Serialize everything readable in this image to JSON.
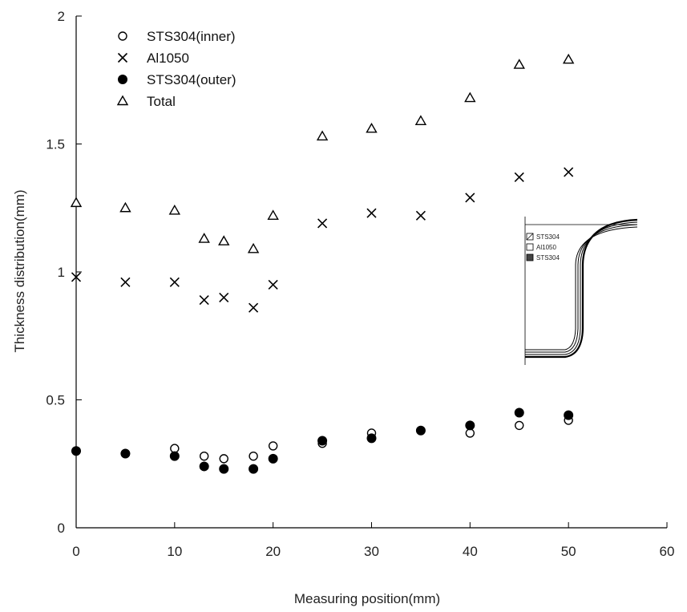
{
  "chart_data": {
    "type": "scatter",
    "title": "",
    "xlabel": "Measuring position(mm)",
    "ylabel": "Thickness distribution(mm)",
    "xlim": [
      0,
      60
    ],
    "ylim": [
      0,
      2
    ],
    "xticks": [
      "0",
      "10",
      "20",
      "30",
      "40",
      "50",
      "60"
    ],
    "yticks": [
      "0",
      "0.5",
      "1",
      "1.5",
      "2"
    ],
    "grid": false,
    "legend_position": "top-left",
    "series": [
      {
        "name": "STS304(inner)",
        "marker": "open-circle",
        "x": [
          0,
          5,
          10,
          13,
          15,
          18,
          20,
          25,
          30,
          35,
          40,
          45,
          50
        ],
        "y": [
          0.3,
          0.29,
          0.31,
          0.28,
          0.27,
          0.28,
          0.32,
          0.33,
          0.37,
          0.38,
          0.37,
          0.4,
          0.42
        ]
      },
      {
        "name": "Al1050",
        "marker": "cross",
        "x": [
          0,
          5,
          10,
          13,
          15,
          18,
          20,
          25,
          30,
          35,
          40,
          45,
          50
        ],
        "y": [
          0.98,
          0.96,
          0.96,
          0.89,
          0.9,
          0.86,
          0.95,
          1.19,
          1.23,
          1.22,
          1.29,
          1.37,
          1.39
        ]
      },
      {
        "name": "STS304(outer)",
        "marker": "filled-circle",
        "x": [
          0,
          5,
          10,
          13,
          15,
          18,
          20,
          25,
          30,
          35,
          40,
          45,
          50
        ],
        "y": [
          0.3,
          0.29,
          0.28,
          0.24,
          0.23,
          0.23,
          0.27,
          0.34,
          0.35,
          0.38,
          0.4,
          0.45,
          0.44
        ]
      },
      {
        "name": "Total",
        "marker": "open-triangle",
        "x": [
          0,
          5,
          10,
          13,
          15,
          18,
          20,
          25,
          30,
          35,
          40,
          45,
          50
        ],
        "y": [
          1.27,
          1.25,
          1.24,
          1.13,
          1.12,
          1.09,
          1.22,
          1.53,
          1.56,
          1.59,
          1.68,
          1.81,
          1.83
        ]
      }
    ],
    "inset": {
      "legend": [
        "STS304",
        "Al1050",
        "STS304"
      ]
    }
  }
}
